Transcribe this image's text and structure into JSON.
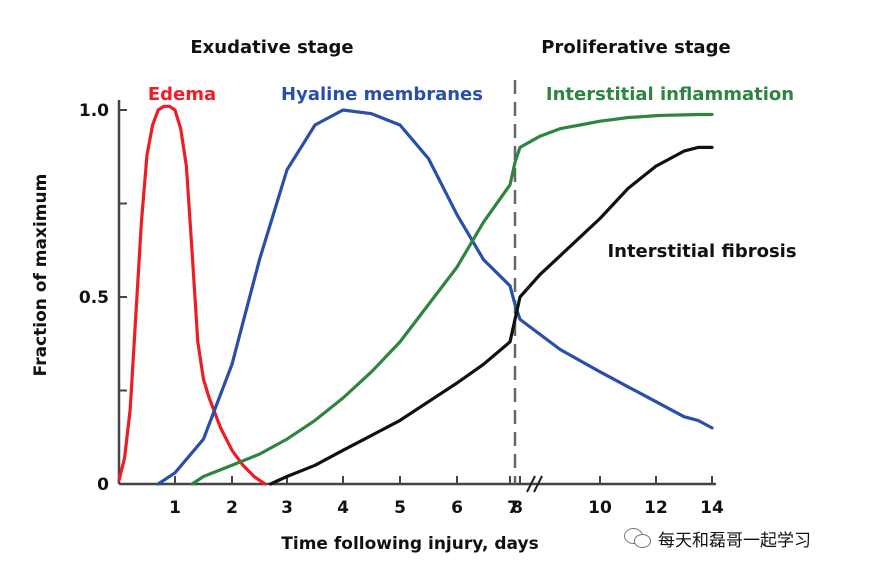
{
  "chart_data": {
    "type": "line",
    "title": "",
    "xlabel": "Time following injury, days",
    "ylabel": "Fraction of maximum",
    "ylim": [
      0,
      1.0
    ],
    "y_ticks": [
      "0",
      "0.5",
      "1.0"
    ],
    "x_ticks": [
      "1",
      "2",
      "3",
      "4",
      "5",
      "6",
      "7",
      "8",
      "10",
      "12",
      "14"
    ],
    "x_axis_break": "between 8 and 10",
    "stage_divider_day": 7.5,
    "stages": [
      {
        "label": "Exudative stage"
      },
      {
        "label": "Proliferative stage"
      }
    ],
    "series": [
      {
        "name": "Edema",
        "color": "#ee1c25",
        "x": [
          0,
          0.1,
          0.2,
          0.3,
          0.4,
          0.5,
          0.6,
          0.7,
          0.8,
          0.9,
          1.0,
          1.1,
          1.2,
          1.3,
          1.4,
          1.5,
          1.6,
          1.7,
          1.8,
          1.9,
          2.0,
          2.1,
          2.2,
          2.3,
          2.4,
          2.5,
          2.6
        ],
        "values": [
          0.01,
          0.07,
          0.2,
          0.45,
          0.7,
          0.88,
          0.96,
          1.0,
          1.01,
          1.01,
          1.0,
          0.95,
          0.85,
          0.62,
          0.38,
          0.28,
          0.23,
          0.19,
          0.15,
          0.12,
          0.09,
          0.07,
          0.05,
          0.035,
          0.02,
          0.01,
          0.0
        ]
      },
      {
        "name": "Hyaline membranes",
        "color": "#2a4fa8",
        "x": [
          0.7,
          1.0,
          1.5,
          2.0,
          2.5,
          3.0,
          3.5,
          4.0,
          4.5,
          5.0,
          5.5,
          6.0,
          6.5,
          7.0,
          7.5,
          8.0,
          8.5,
          9.0,
          9.5,
          10.0,
          10.5,
          11.0,
          11.5,
          12.0,
          12.5,
          13.0,
          13.5,
          14.0
        ],
        "values": [
          0.0,
          0.03,
          0.12,
          0.32,
          0.6,
          0.84,
          0.96,
          1.0,
          0.99,
          0.96,
          0.87,
          0.72,
          0.6,
          0.53,
          0.48,
          0.44,
          0.4,
          0.36,
          0.33,
          0.3,
          0.28,
          0.26,
          0.24,
          0.22,
          0.2,
          0.18,
          0.17,
          0.15
        ]
      },
      {
        "name": "Interstitial inflammation",
        "color": "#2e8540",
        "x": [
          1.3,
          1.5,
          2.0,
          2.5,
          3.0,
          3.5,
          4.0,
          4.5,
          5.0,
          5.5,
          6.0,
          6.5,
          7.0,
          7.5,
          8.0,
          8.5,
          9.0,
          9.5,
          10.0,
          10.5,
          11.0,
          11.5,
          12.0,
          12.5,
          13.0,
          13.5,
          14.0
        ],
        "values": [
          0.0,
          0.02,
          0.05,
          0.08,
          0.12,
          0.17,
          0.23,
          0.3,
          0.38,
          0.48,
          0.58,
          0.7,
          0.8,
          0.86,
          0.9,
          0.93,
          0.95,
          0.96,
          0.97,
          0.975,
          0.98,
          0.982,
          0.985,
          0.986,
          0.987,
          0.988,
          0.988
        ]
      },
      {
        "name": "Interstitial fibrosis",
        "color": "#111111",
        "x": [
          2.7,
          3.0,
          3.5,
          4.0,
          4.5,
          5.0,
          5.5,
          6.0,
          6.5,
          7.0,
          7.5,
          8.0,
          8.5,
          9.0,
          9.5,
          10.0,
          10.5,
          11.0,
          11.5,
          12.0,
          12.5,
          13.0,
          13.5,
          14.0
        ],
        "values": [
          0.0,
          0.02,
          0.05,
          0.09,
          0.13,
          0.17,
          0.22,
          0.27,
          0.32,
          0.38,
          0.44,
          0.5,
          0.56,
          0.61,
          0.66,
          0.71,
          0.75,
          0.79,
          0.82,
          0.85,
          0.87,
          0.89,
          0.9,
          0.9
        ]
      }
    ]
  },
  "watermark": {
    "icon": "wechat-icon",
    "text": "每天和磊哥一起学习"
  }
}
